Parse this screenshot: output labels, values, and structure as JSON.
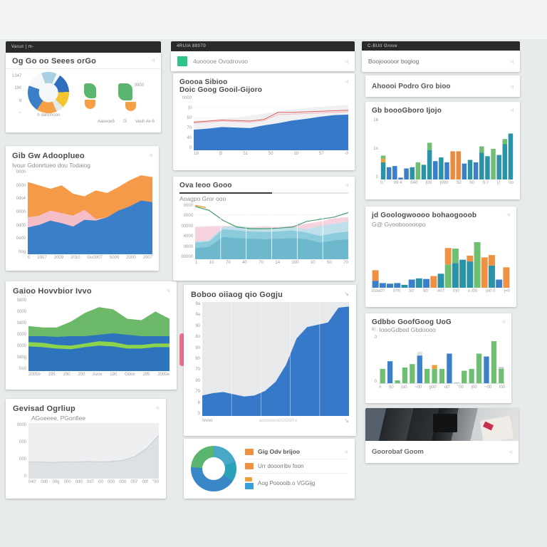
{
  "icons": {
    "chevron": "◃",
    "resize": "↘"
  },
  "colors": {
    "blue": "#3579c8",
    "teal": "#2b93a8",
    "green": "#6fbf73",
    "orange": "#f59a48",
    "pink": "#f5bdc8",
    "lime": "#8ed44a",
    "yellow": "#f2c531",
    "legend_swatch": "#2ec489",
    "dark_header": "#2a2a2a",
    "donut_legend": [
      "#ef9143",
      "#ef9143",
      "#3b9fd8"
    ],
    "donut_legend_extra": "#e8a13c"
  },
  "left": {
    "cardA": {
      "header": "Vasut | m-",
      "title": "Og Go oo Seees orGo",
      "axis": [
        "1347",
        "190",
        "8",
        "~"
      ],
      "caption": "h daromooo",
      "cluster_label": "0000",
      "footer_left": "Aaoeoe6",
      "footer_mid": "/3",
      "footer_right": "Vauh Av-6"
    },
    "cardB": {
      "title": "Gib Gw Adooplueo",
      "subtitle": "Ivour Gdonrtueo dou Todaiog",
      "y": [
        "0000",
        "0000",
        "0do4",
        "0000",
        "0d00",
        "0o00",
        "0og"
      ],
      "x": [
        "0",
        "2007",
        "2009",
        "2010",
        "Gu0007",
        "5000",
        "2000",
        "2007"
      ]
    },
    "cardC": {
      "title": "Gaioo Hovvbior Ivvo",
      "y": [
        "9d00",
        "0000",
        "0d00",
        "0000",
        "0000",
        "0d0g",
        "0o0"
      ],
      "x": [
        "2005b",
        "195",
        "190",
        "200",
        "Avov",
        "190",
        "Gdov",
        "195",
        "2000e"
      ]
    },
    "cardD": {
      "title": "Gevisad Ogrliup",
      "subtitle": "AGoeeee, PGonfiee",
      "y": [
        "0000",
        "000",
        "000",
        "0"
      ],
      "x": [
        "040'",
        "0d0",
        "00g",
        "000",
        "0d0",
        "0d7",
        "00",
        "000",
        "000",
        "007",
        "00f",
        "\"00"
      ]
    }
  },
  "middle": {
    "bar": "4RUIA 88070",
    "legend": {
      "label": "4uooooe Ovodrovoo"
    },
    "cardF": {
      "title1": "Goooa Sibioo",
      "title2": "Doic Goog Gooil-Gijoro",
      "y": [
        "0000",
        "|0",
        "50",
        "70",
        "40",
        "0"
      ],
      "x": [
        "19",
        "|5",
        "51",
        "50",
        "10",
        "57",
        "-0"
      ]
    },
    "cardG": {
      "title": "Ova Ieoo Gooo",
      "subtitle": "Aoagpo Gror ooo",
      "y": [
        "0000",
        "0000",
        "00000",
        "4000",
        "0000",
        "00000"
      ],
      "x": [
        "1",
        "10",
        "70",
        "40",
        "70",
        "14",
        "100",
        "10",
        "50",
        "70"
      ]
    },
    "cardH": {
      "title": "Boboo oiiaog qio Gogju",
      "y": [
        "9a",
        "9a",
        "90",
        "8o",
        "90",
        "80",
        "70",
        "90",
        "79",
        "8",
        "0"
      ],
      "x_left": "Ivvoo",
      "x_mid": "aoooooooGGGG0-c"
    },
    "donut": {
      "legend": [
        {
          "label": "Gig Odv brijoo"
        },
        {
          "label": "Urr dooorribv foon"
        },
        {
          "label": "Aog Pooooib.o VGGijg"
        }
      ]
    }
  },
  "right": {
    "bar": "C-BUII Grove",
    "card1": {
      "title": "Boojooooor bogiog"
    },
    "card2": {
      "title": "Ahoooi Podro Gro bioo"
    },
    "cardK": {
      "title": "Gb boooGboro Ijojo",
      "y": [
        "1b",
        "1o",
        "0"
      ],
      "x": [
        "0.\"",
        "09 4",
        "040",
        "|00",
        "|000",
        "50",
        "50",
        "0.7",
        "|7",
        "0o"
      ]
    },
    "cardL": {
      "title": "jd Goologwoooo bohaogooob",
      "subtitle": "G@ Gvoobooooopo",
      "x": [
        "Goo0?",
        "0?0",
        "50'",
        "90'",
        "#07",
        "0)0",
        "o /00",
        "|o0 0",
        "|=0"
      ]
    },
    "cardM": {
      "title": "Gdbbo GoofGoog UoG",
      "subtitle": "IoooGdbod Gbdoooo",
      "prefix": "6)",
      "y": [
        "0",
        "0"
      ],
      "x": [
        "#",
        "/)0",
        "|o0",
        "~00",
        "g00'",
        "o0'",
        "\"00",
        "|00",
        "~00",
        "/00"
      ]
    },
    "cardN": {
      "footer": "Goorobaf Goom"
    }
  },
  "charts": {
    "pieA": {
      "type": "pie",
      "from": -20,
      "slices": [
        [
          "#a9cfe2",
          12
        ],
        [
          "#f4f7f7",
          3
        ],
        [
          "#2e6fbd",
          15
        ],
        [
          "#f2c531",
          13
        ],
        [
          "#e2ebea",
          6
        ],
        [
          "#f5a046",
          16
        ],
        [
          "#3b7fc8",
          21
        ],
        [
          "#f4f7f7",
          14
        ]
      ],
      "hole": {
        "pct": 0.46,
        "color": "#f4f7f7"
      }
    },
    "donutI": {
      "type": "pie",
      "from": 0,
      "slices": [
        [
          "#47a8c8",
          20
        ],
        [
          "#2aa3b8",
          14
        ],
        [
          "#3a87c8",
          42
        ],
        [
          "#5cb56e",
          24
        ]
      ],
      "hole": {
        "pct": 0.5,
        "color": "#ffffff"
      }
    },
    "areaB": {
      "type": "layers",
      "layers": [
        {
          "kind": "area",
          "color": "#f59a48",
          "points": [
            86,
            82,
            78,
            82,
            72,
            69,
            76,
            73,
            80,
            88,
            94,
            92
          ]
        },
        {
          "kind": "area",
          "color": "#f5bdc8",
          "points": [
            44,
            46,
            52,
            49,
            46,
            53,
            42,
            44,
            52,
            57,
            64,
            62
          ]
        },
        {
          "kind": "area",
          "color": "#3b7fc8",
          "points": [
            32,
            35,
            40,
            37,
            33,
            41,
            40,
            44,
            52,
            57,
            64,
            62
          ]
        }
      ]
    },
    "areaC": {
      "type": "layers",
      "layers": [
        {
          "kind": "area",
          "color": "#6cb96a",
          "points": [
            62,
            60,
            60,
            68,
            80,
            88,
            85,
            72,
            70,
            82,
            72
          ]
        },
        {
          "kind": "area",
          "color": "#2e74bd",
          "points": [
            48,
            48,
            47,
            48,
            48,
            50,
            52,
            50,
            48,
            48,
            48
          ]
        },
        {
          "kind": "area",
          "color": "#8ed44a",
          "points": [
            40,
            39,
            36,
            35,
            38,
            41,
            40,
            36,
            36,
            38,
            38
          ]
        },
        {
          "kind": "area",
          "color": "#2e74bd",
          "points": [
            34,
            33,
            31,
            30,
            33,
            35,
            34,
            31,
            31,
            33,
            33
          ]
        }
      ]
    },
    "areaD": {
      "type": "layers",
      "bg": "#edeff1",
      "layers": [
        {
          "kind": "area",
          "color": "#dde1e4",
          "points": [
            30,
            30,
            29,
            30,
            30,
            31,
            30,
            31,
            33,
            40,
            55,
            78
          ]
        },
        {
          "kind": "line",
          "color": "#c6cbd0",
          "width": 1,
          "points": [
            30,
            30,
            29,
            30,
            30,
            31,
            30,
            31,
            33,
            40,
            55,
            78
          ]
        }
      ]
    },
    "areaF": {
      "type": "layers",
      "hgrid": {
        "count": 4,
        "color": "#f0f1f2"
      },
      "layers": [
        {
          "kind": "area",
          "color": "#eef0f1",
          "points": [
            56,
            56,
            58,
            60,
            64,
            68,
            72,
            75,
            78,
            80,
            82,
            84
          ]
        },
        {
          "kind": "area",
          "color": "#3579c8",
          "points": [
            38,
            40,
            43,
            42,
            41,
            46,
            50,
            55,
            58,
            62,
            65,
            66
          ]
        },
        {
          "kind": "line",
          "color": "#f0b8c0",
          "width": 1,
          "points": [
            50,
            52,
            54,
            53,
            52,
            55,
            66,
            67,
            68,
            69,
            70,
            71
          ]
        },
        {
          "kind": "line",
          "color": "#e06055",
          "width": 1,
          "points": [
            52,
            54,
            56,
            55,
            54,
            57,
            70,
            70,
            71,
            72,
            73,
            74
          ]
        }
      ]
    },
    "areaG": {
      "type": "layers",
      "hgrid": {
        "count": 4,
        "color": "#eef0f1"
      },
      "vgrid": {
        "count": 5,
        "color": "#ffffff"
      },
      "layers": [
        {
          "kind": "area",
          "color": "#f3c3d3",
          "opacity": 0.75,
          "points": [
            58,
            59,
            60,
            59,
            58,
            59,
            58,
            60,
            64,
            68,
            74,
            76
          ]
        },
        {
          "kind": "area",
          "color": "#bfe0ea",
          "points": [
            32,
            34,
            58,
            60,
            57,
            56,
            57,
            58,
            54,
            60,
            64,
            68
          ]
        },
        {
          "kind": "area",
          "color": "#8ccbdc",
          "points": [
            30,
            32,
            54,
            52,
            50,
            49,
            50,
            52,
            48,
            42,
            47,
            50
          ]
        },
        {
          "kind": "area",
          "color": "#6db8cd",
          "points": [
            20,
            22,
            40,
            38,
            37,
            36,
            37,
            38,
            36,
            30,
            34,
            36
          ]
        },
        {
          "kind": "line",
          "color": "#4a9b6e",
          "width": 1.2,
          "points": [
            95,
            88,
            70,
            58,
            55,
            55,
            56,
            58,
            68,
            72,
            76,
            84
          ]
        },
        {
          "kind": "line",
          "color": "#e8a13c",
          "width": 1.5,
          "points": [
            97,
            93
          ],
          "xrange": [
            0,
            7
          ]
        }
      ]
    },
    "areaH": {
      "type": "layers",
      "bg": "#e7e9ea",
      "vgrid": {
        "count": 4,
        "color": "rgba(255,255,255,0.55)"
      },
      "layers": [
        {
          "kind": "area",
          "color": "#3579c8",
          "points": [
            18,
            20,
            21,
            19,
            17,
            18,
            22,
            30,
            45,
            68,
            78,
            80,
            82,
            95,
            96
          ]
        }
      ]
    },
    "barsK": {
      "type": "bars",
      "gap": 0.2,
      "bars": [
        [
          [
            "#2b93a8",
            28
          ],
          [
            "#e8a13c",
            6
          ],
          [
            "#6fbf73",
            5
          ]
        ],
        [
          [
            "#3b7fc8",
            20
          ]
        ],
        [
          [
            "#3b7fc8",
            22
          ]
        ],
        [
          [
            "#3b7fc8",
            3
          ]
        ],
        [
          [
            "#3b7fc8",
            18
          ]
        ],
        [
          [
            "#2b93a8",
            20
          ]
        ],
        [
          [
            "#6fbf73",
            28
          ]
        ],
        [
          [
            "#2b93a8",
            24
          ]
        ],
        [
          [
            "#2b93a8",
            48
          ],
          [
            "#6fbf73",
            12
          ]
        ],
        [
          [
            "#3b7fc8",
            30
          ]
        ],
        [
          [
            "#2b93a8",
            36
          ]
        ],
        [
          [
            "#3b7fc8",
            28
          ]
        ],
        [
          [
            "#e98c3f",
            46
          ]
        ],
        [
          [
            "#e98c3f",
            46
          ]
        ],
        [
          [
            "#3b7fc8",
            26
          ]
        ],
        [
          [
            "#2b93a8",
            32
          ]
        ],
        [
          [
            "#3b7fc8",
            28
          ]
        ],
        [
          [
            "#2b93a8",
            44
          ],
          [
            "#6fbf73",
            10
          ]
        ],
        [
          [
            "#2b93a8",
            38
          ]
        ],
        [
          [
            "#6fbf73",
            50
          ]
        ],
        [
          [
            "#2b93a8",
            40
          ]
        ],
        [
          [
            "#2b93a8",
            58
          ],
          [
            "#6fbf73",
            8
          ]
        ],
        [
          [
            "#2b93a8",
            75
          ]
        ]
      ]
    },
    "barsL": {
      "type": "bars",
      "gap": 0.12,
      "bars": [
        [
          [
            "#3b7fc8",
            12
          ],
          [
            "#ef9143",
            18
          ]
        ],
        [
          [
            "#3b7fc8",
            8
          ]
        ],
        [
          [
            "#3b7fc8",
            7
          ]
        ],
        [
          [
            "#3b7fc8",
            8
          ]
        ],
        [
          [
            "#2b93a8",
            5
          ]
        ],
        [
          [
            "#3b7fc8",
            14
          ]
        ],
        [
          [
            "#2b93a8",
            16
          ]
        ],
        [
          [
            "#3b7fc8",
            15
          ]
        ],
        [
          [
            "#ef9143",
            20
          ]
        ],
        [
          [
            "#2b93a8",
            24
          ]
        ],
        [
          [
            "#6fbf73",
            40
          ],
          [
            "#ef9143",
            28
          ]
        ],
        [
          [
            "#2b93a8",
            42
          ],
          [
            "#6fbf73",
            25
          ]
        ],
        [
          [
            "#2b93a8",
            48
          ]
        ],
        [
          [
            "#2b93a8",
            45
          ],
          [
            "#ef9143",
            10
          ]
        ],
        [
          [
            "#6fbf73",
            78
          ]
        ],
        [
          [
            "#ef9143",
            52
          ]
        ],
        [
          [
            "#2b93a8",
            38
          ],
          [
            "#ef9143",
            18
          ]
        ],
        [
          [
            "#3b7fc8",
            14
          ]
        ],
        [
          [
            "#ef9143",
            35
          ]
        ]
      ]
    },
    "barsM": {
      "type": "bars",
      "gap": 0.3,
      "bars": [
        [
          [
            "#6fbf73",
            30
          ]
        ],
        [
          [
            "#3b7fc8",
            46
          ]
        ],
        [
          [
            "#6fbf73",
            6
          ]
        ],
        [
          [
            "#6fbf73",
            33
          ]
        ],
        [
          [
            "#6fbf73",
            40
          ]
        ],
        [
          [
            "#3b7fc8",
            58
          ],
          [
            "#dfe3e5",
            8
          ]
        ],
        [
          [
            "#6fbf73",
            30
          ]
        ],
        [
          [
            "#6fbf73",
            30
          ],
          [
            "#e8a13c",
            8
          ]
        ],
        [
          [
            "#6fbf73",
            30
          ]
        ],
        [
          [
            "#3b7fc8",
            62
          ]
        ],
        [
          [
            "#c8cdd0",
            2
          ]
        ],
        [
          [
            "#6fbf73",
            26
          ]
        ],
        [
          [
            "#6fbf73",
            30
          ]
        ],
        [
          [
            "#6fbf73",
            62
          ]
        ],
        [
          [
            "#3b7fc8",
            56
          ]
        ],
        [
          [
            "#6fbf73",
            88
          ]
        ],
        [
          [
            "#6fbf73",
            30
          ],
          [
            "#c8cdd0",
            4
          ]
        ]
      ]
    }
  }
}
